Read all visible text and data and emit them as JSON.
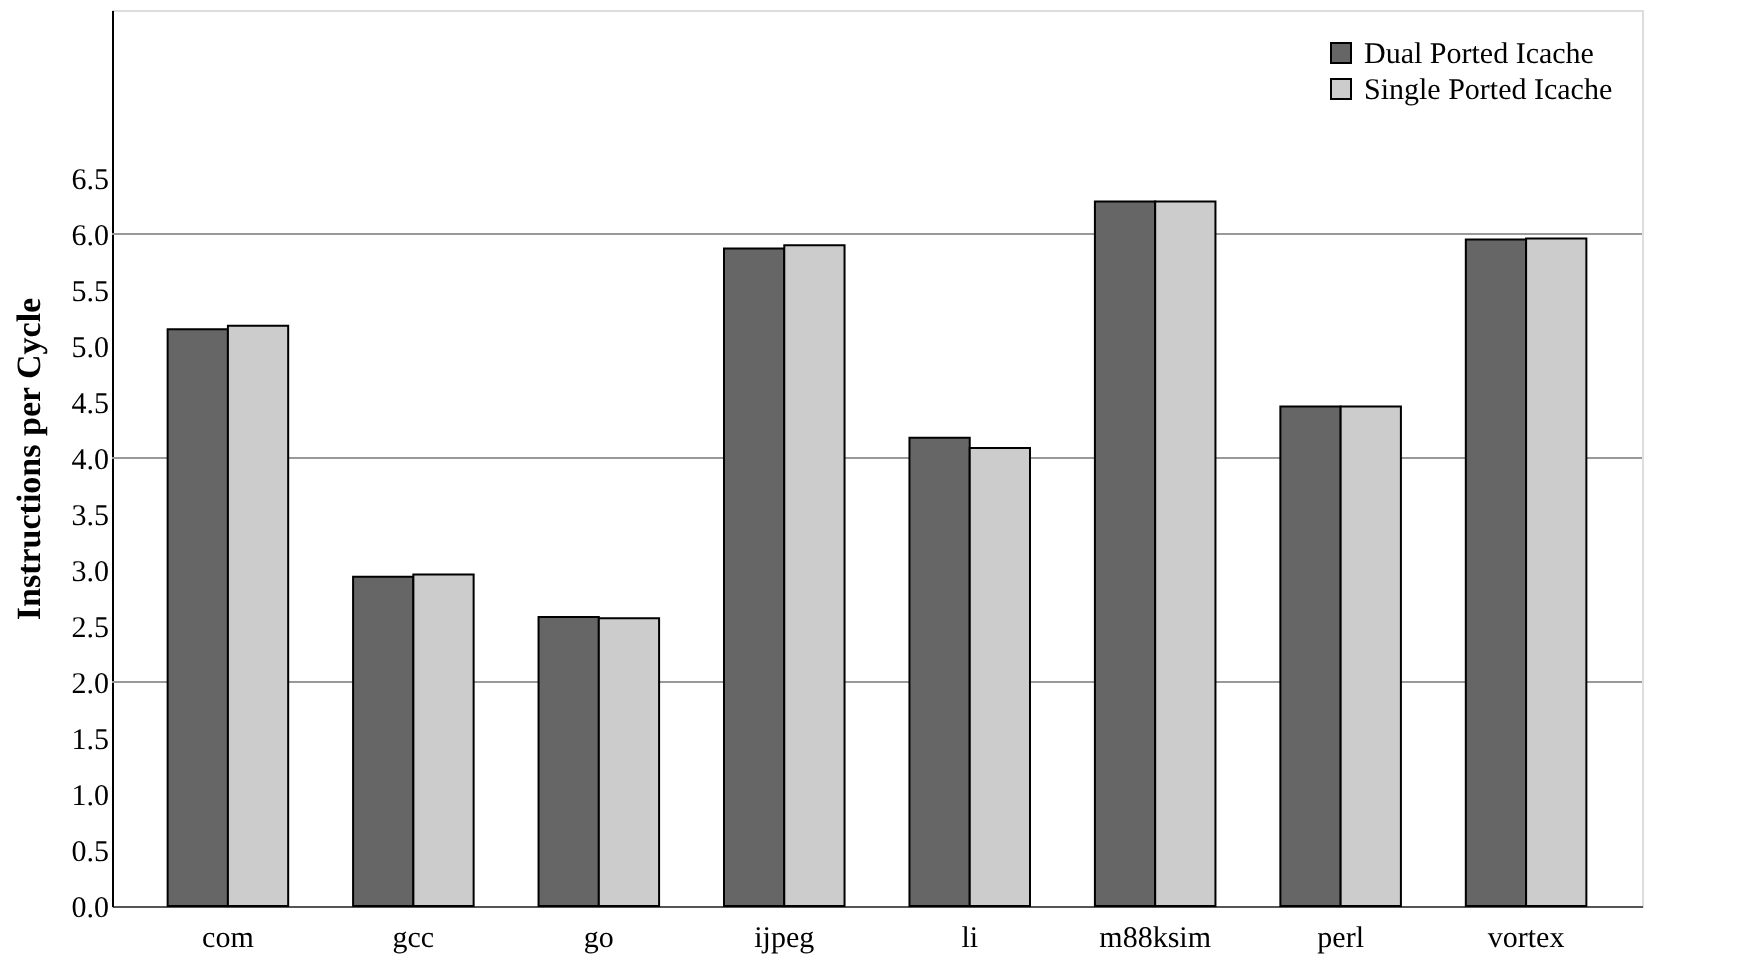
{
  "chart_data": {
    "type": "bar",
    "ylabel": "Instructions per Cycle",
    "categories": [
      "com",
      "gcc",
      "go",
      "ijpeg",
      "li",
      "m88ksim",
      "perl",
      "vortex"
    ],
    "series": [
      {
        "name": "Dual Ported Icache",
        "color": "#666666",
        "values": [
          5.15,
          2.94,
          2.58,
          5.87,
          4.18,
          6.29,
          4.46,
          5.95
        ]
      },
      {
        "name": "Single Ported Icache",
        "color": "#cccccc",
        "values": [
          5.18,
          2.96,
          2.57,
          5.9,
          4.09,
          6.29,
          4.46,
          5.96
        ]
      }
    ],
    "ylim": [
      0,
      8
    ],
    "yticks": [
      {
        "value": 0,
        "label": "0.0"
      },
      0.5,
      {
        "value": 1,
        "label": "1.0"
      },
      1.5,
      {
        "value": 2,
        "label": "2.0"
      },
      2.5,
      {
        "value": 3,
        "label": "3.0"
      },
      3.5,
      {
        "value": 4,
        "label": "4.0"
      },
      4.5,
      {
        "value": 5,
        "label": "5.0"
      },
      5.5,
      {
        "value": 6,
        "label": "6.0"
      },
      6.5
    ],
    "ref_lines": [
      {
        "axis": "y",
        "value": 2,
        "color": "#999999"
      },
      {
        "axis": "y",
        "value": 4,
        "color": "#999999"
      },
      {
        "axis": "y",
        "value": 6,
        "color": "#999999"
      }
    ],
    "grid": false,
    "legend": "top right"
  }
}
